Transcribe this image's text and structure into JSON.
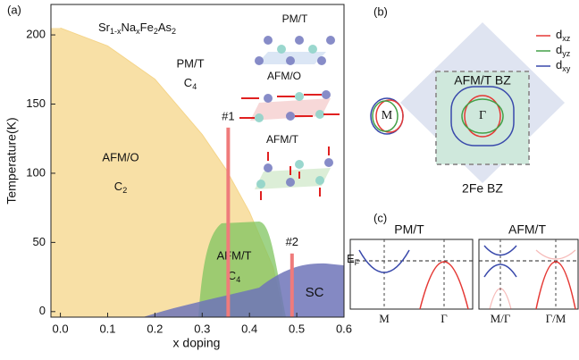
{
  "panel_a": {
    "label": "(a)",
    "formula": [
      "Sr",
      "1-x",
      "Na",
      "x",
      "Fe",
      "2",
      "As",
      "2"
    ],
    "xlabel": "x doping",
    "ylabel": "Temperature(K)",
    "xlim": [
      -0.02,
      0.6
    ],
    "ylim": [
      -4,
      222
    ],
    "xticks": [
      {
        "value": 0,
        "label": "0.0"
      },
      {
        "value": 0.1,
        "label": "0.1"
      },
      {
        "value": 0.2,
        "label": "0.2"
      },
      {
        "value": 0.3,
        "label": "0.3"
      },
      {
        "value": 0.4,
        "label": "0.4"
      },
      {
        "value": 0.5,
        "label": "0.5"
      },
      {
        "value": 0.6,
        "label": "0.6"
      }
    ],
    "yticks": [
      0,
      50,
      100,
      150,
      200
    ],
    "phase_labels": {
      "pm_t": "PM/T",
      "c4": [
        "C",
        "4"
      ],
      "afm_o": "AFM/O",
      "c2": [
        "C",
        "2"
      ],
      "afm_t": "AFM/T",
      "c4b": [
        "C",
        "4"
      ],
      "sc": "SC"
    },
    "afm_o_boundary": {
      "x": [
        0,
        0.1,
        0.2,
        0.3,
        0.35,
        0.4,
        0.45,
        0.47
      ],
      "y": [
        205,
        192,
        168,
        128,
        103,
        72,
        32,
        0
      ]
    },
    "cuts": [
      {
        "label": "#1",
        "x": 0.355,
        "top": 133
      },
      {
        "label": "#2",
        "x": 0.49,
        "top": 42
      }
    ],
    "inset_labels": [
      "PM/T",
      "AFM/O",
      "AFM/T"
    ]
  },
  "panel_b": {
    "label": "(b)",
    "afm_bz": "AFM/T BZ",
    "bz": "2Fe BZ",
    "gamma": "Γ",
    "m": "M",
    "legend": [
      {
        "name": [
          "d",
          "xz"
        ],
        "color": "#e53935"
      },
      {
        "name": [
          "d",
          "yz"
        ],
        "color": "#43a047"
      },
      {
        "name": [
          "d",
          "xy"
        ],
        "color": "#3949ab"
      }
    ]
  },
  "panel_c": {
    "label": "(c)",
    "titles": [
      "PM/T",
      "AFM/T"
    ],
    "ef": [
      "E",
      "F"
    ],
    "ticks_left": [
      "M",
      "Γ"
    ],
    "ticks_right": [
      "M/Γ",
      "Γ/M"
    ]
  }
}
